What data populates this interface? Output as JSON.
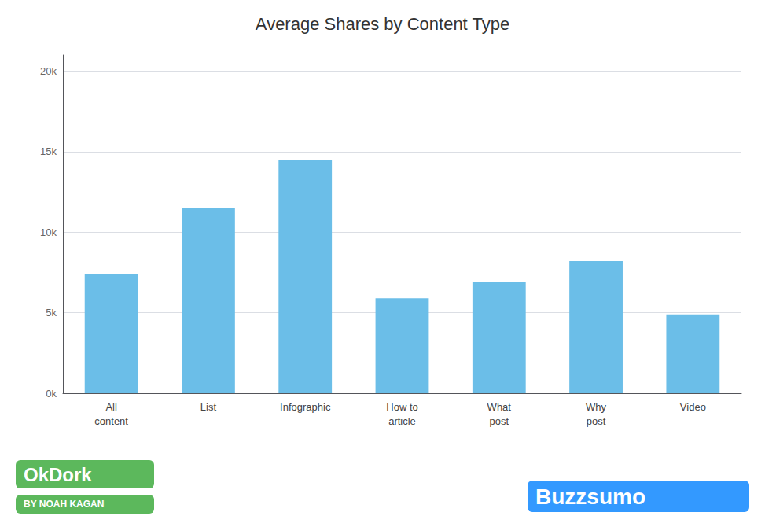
{
  "chart_data": {
    "type": "bar",
    "title": "Average Shares by Content Type",
    "categories": [
      "All\ncontent",
      "List",
      "Infographic",
      "How to\narticle",
      "What\npost",
      "Why\npost",
      "Video"
    ],
    "values": [
      7400,
      11500,
      14500,
      5900,
      6900,
      8200,
      4900
    ],
    "color": "#6bbee8",
    "ylim": [
      0,
      21000
    ],
    "yticks": [
      {
        "value": 0,
        "label": "0k"
      },
      {
        "value": 5000,
        "label": "5k"
      },
      {
        "value": 10000,
        "label": "10k"
      },
      {
        "value": 15000,
        "label": "15k"
      },
      {
        "value": 20000,
        "label": "20k"
      }
    ],
    "grid": true,
    "annotations": [
      {
        "text": "OkDork",
        "color": "#5cb85c"
      },
      {
        "text": "BY NOAH KAGAN",
        "color": "#5cb85c"
      },
      {
        "text": "Buzzsumo",
        "color": "#3399ff"
      }
    ]
  }
}
